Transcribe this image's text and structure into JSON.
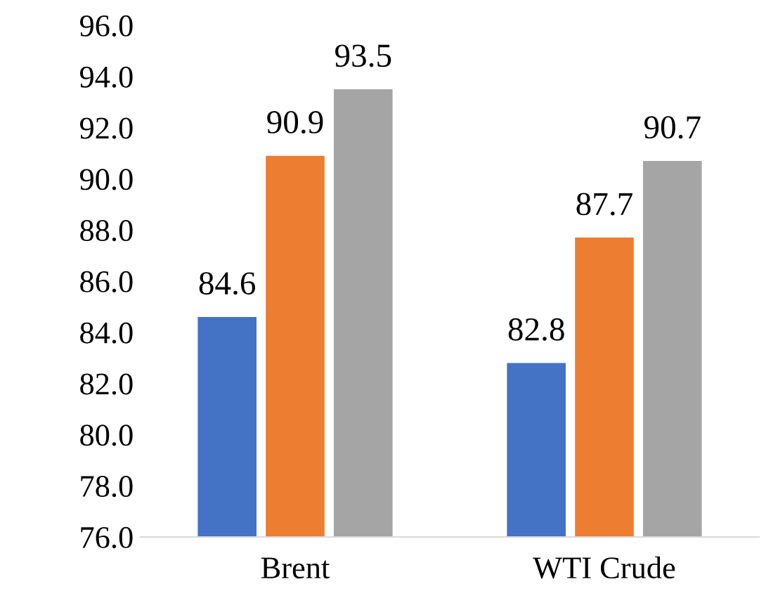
{
  "chart_data": {
    "type": "bar",
    "categories": [
      "Brent",
      "WTI Crude"
    ],
    "series": [
      {
        "color": "#4472c4",
        "values": [
          84.6,
          82.8
        ]
      },
      {
        "color": "#ed7d31",
        "values": [
          90.9,
          87.7
        ]
      },
      {
        "color": "#a5a5a5",
        "values": [
          93.5,
          90.7
        ]
      }
    ],
    "ylim": [
      76,
      96
    ],
    "yticks": [
      {
        "value": 76,
        "label": "76.0"
      },
      {
        "value": 78,
        "label": "78.0"
      },
      {
        "value": 80,
        "label": "80.0"
      },
      {
        "value": 82,
        "label": "82.0"
      },
      {
        "value": 84,
        "label": "84.0"
      },
      {
        "value": 86,
        "label": "86.0"
      },
      {
        "value": 88,
        "label": "88.0"
      },
      {
        "value": 90,
        "label": "90.0"
      },
      {
        "value": 92,
        "label": "92.0"
      },
      {
        "value": 94,
        "label": "94.0"
      },
      {
        "value": 96,
        "label": "96.0"
      }
    ],
    "data_labels": true
  }
}
